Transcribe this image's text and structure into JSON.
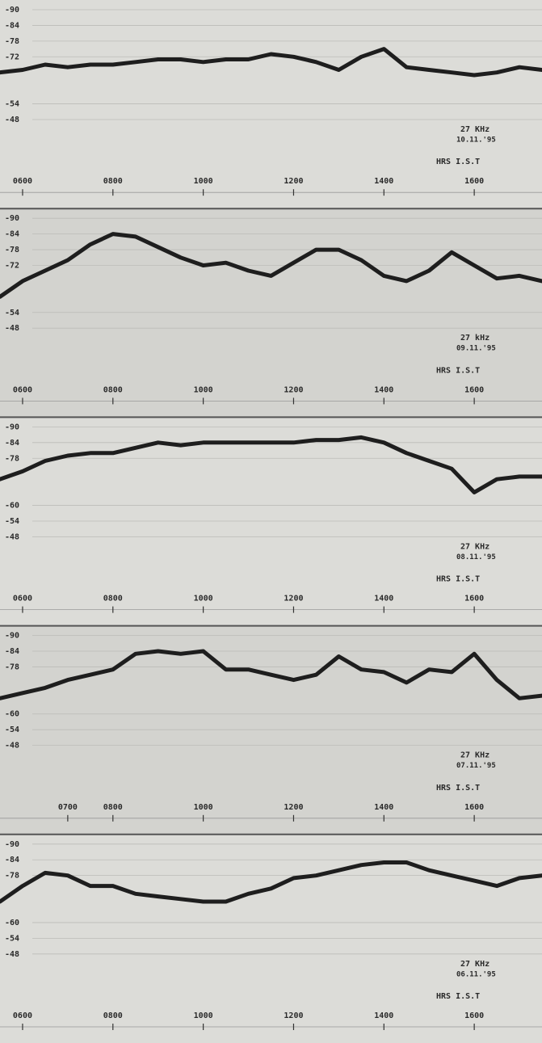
{
  "chart_data": [
    {
      "type": "line",
      "annotation": "27 KHz",
      "date": "10.11.'95",
      "xlabel": "HRS I.S.T",
      "color": "#1e1e1e",
      "grid": true,
      "xlim": [
        5.5,
        17.5
      ],
      "ylim": [
        -48,
        -90
      ],
      "xticks": [
        {
          "value": 6,
          "label": "0600"
        },
        {
          "value": 8,
          "label": "0800"
        },
        {
          "value": 10,
          "label": "1000"
        },
        {
          "value": 12,
          "label": "1200"
        },
        {
          "value": 14,
          "label": "1400"
        },
        {
          "value": 16,
          "label": "1600"
        }
      ],
      "yticks": [
        -90,
        -84,
        -78,
        -72,
        -54,
        -48
      ],
      "x": [
        5.5,
        6,
        6.5,
        7,
        7.5,
        8,
        8.5,
        9,
        9.5,
        10,
        10.5,
        11,
        11.5,
        12,
        12.5,
        13,
        13.5,
        14,
        14.5,
        15,
        15.5,
        16,
        16.5,
        17,
        17.5
      ],
      "values": [
        -66,
        -67,
        -69,
        -68,
        -69,
        -69,
        -70,
        -71,
        -71,
        -70,
        -71,
        -71,
        -73,
        -72,
        -70,
        -67,
        -72,
        -75,
        -68,
        -67,
        -66,
        -65,
        -66,
        -68,
        -67
      ]
    },
    {
      "type": "line",
      "annotation": "27 kHz",
      "date": "09.11.'95",
      "xlabel": "HRS I.S.T",
      "color": "#1e1e1e",
      "grid": true,
      "xlim": [
        5.5,
        17.5
      ],
      "ylim": [
        -48,
        -90
      ],
      "xticks": [
        {
          "value": 6,
          "label": "0600"
        },
        {
          "value": 8,
          "label": "0800"
        },
        {
          "value": 10,
          "label": "1000"
        },
        {
          "value": 12,
          "label": "1200"
        },
        {
          "value": 14,
          "label": "1400"
        },
        {
          "value": 16,
          "label": "1600"
        }
      ],
      "yticks": [
        -90,
        -84,
        -78,
        -72,
        -54,
        -48
      ],
      "x": [
        5.5,
        6,
        6.5,
        7,
        7.5,
        8,
        8.5,
        9,
        9.5,
        10,
        10.5,
        11,
        11.5,
        12,
        12.5,
        13,
        13.5,
        14,
        14.5,
        15,
        15.5,
        16,
        16.5,
        17,
        17.5
      ],
      "values": [
        -60,
        -66,
        -70,
        -74,
        -80,
        -84,
        -83,
        -79,
        -75,
        -72,
        -73,
        -70,
        -68,
        -73,
        -78,
        -78,
        -74,
        -68,
        -66,
        -70,
        -77,
        -72,
        -67,
        -68,
        -66
      ]
    },
    {
      "type": "line",
      "annotation": "27 KHz",
      "date": "08.11.'95",
      "xlabel": "HRS I.S.T",
      "color": "#1e1e1e",
      "grid": true,
      "xlim": [
        5.5,
        17.5
      ],
      "ylim": [
        -48,
        -90
      ],
      "xticks": [
        {
          "value": 6,
          "label": "0600"
        },
        {
          "value": 8,
          "label": "0800"
        },
        {
          "value": 10,
          "label": "1000"
        },
        {
          "value": 12,
          "label": "1200"
        },
        {
          "value": 14,
          "label": "1400"
        },
        {
          "value": 16,
          "label": "1600"
        }
      ],
      "yticks": [
        -90,
        -84,
        -78,
        -60,
        -54,
        -48
      ],
      "x": [
        5.5,
        6,
        6.5,
        7,
        7.5,
        8,
        8.5,
        9,
        9.5,
        10,
        10.5,
        11,
        11.5,
        12,
        12.5,
        13,
        13.5,
        14,
        14.5,
        15,
        15.5,
        16,
        16.5,
        17,
        17.5
      ],
      "values": [
        -70,
        -73,
        -77,
        -79,
        -80,
        -80,
        -82,
        -84,
        -83,
        -84,
        -84,
        -84,
        -84,
        -84,
        -85,
        -85,
        -86,
        -84,
        -80,
        -77,
        -74,
        -65,
        -70,
        -71,
        -71
      ]
    },
    {
      "type": "line",
      "annotation": "27 KHz",
      "date": "07.11.'95",
      "xlabel": "HRS I.S.T",
      "color": "#1e1e1e",
      "grid": true,
      "xlim": [
        5.5,
        17.5
      ],
      "ylim": [
        -48,
        -90
      ],
      "xticks": [
        {
          "value": 7,
          "label": "0700"
        },
        {
          "value": 8,
          "label": "0800"
        },
        {
          "value": 10,
          "label": "1000"
        },
        {
          "value": 12,
          "label": "1200"
        },
        {
          "value": 14,
          "label": "1400"
        },
        {
          "value": 16,
          "label": "1600"
        }
      ],
      "yticks": [
        -90,
        -84,
        -78,
        -60,
        -54,
        -48
      ],
      "x": [
        5.5,
        6,
        6.5,
        7,
        7.5,
        8,
        8.5,
        9,
        9.5,
        10,
        10.5,
        11,
        11.5,
        12,
        12.5,
        13,
        13.5,
        14,
        14.5,
        15,
        15.5,
        16,
        16.5,
        17,
        17.5
      ],
      "values": [
        -66,
        -68,
        -70,
        -73,
        -75,
        -77,
        -83,
        -84,
        -83,
        -84,
        -77,
        -77,
        -75,
        -73,
        -75,
        -82,
        -77,
        -76,
        -72,
        -77,
        -76,
        -83,
        -73,
        -66,
        -67
      ]
    },
    {
      "type": "line",
      "annotation": "27 KHz",
      "date": "06.11.'95",
      "xlabel": "HRS I.S.T",
      "color": "#1e1e1e",
      "grid": true,
      "xlim": [
        5.5,
        17.5
      ],
      "ylim": [
        -48,
        -90
      ],
      "xticks": [
        {
          "value": 6,
          "label": "0600"
        },
        {
          "value": 8,
          "label": "0800"
        },
        {
          "value": 10,
          "label": "1000"
        },
        {
          "value": 12,
          "label": "1200"
        },
        {
          "value": 14,
          "label": "1400"
        },
        {
          "value": 16,
          "label": "1600"
        }
      ],
      "yticks": [
        -90,
        -84,
        -78,
        -60,
        -54,
        -48
      ],
      "x": [
        5.5,
        6,
        6.5,
        7,
        7.5,
        8,
        8.5,
        9,
        9.5,
        10,
        10.5,
        11,
        11.5,
        12,
        12.5,
        13,
        13.5,
        14,
        14.5,
        15,
        15.5,
        16,
        16.5,
        17,
        17.5
      ],
      "values": [
        -68,
        -74,
        -79,
        -78,
        -74,
        -74,
        -71,
        -70,
        -69,
        -68,
        -68,
        -71,
        -73,
        -77,
        -78,
        -80,
        -82,
        -83,
        -83,
        -80,
        -78,
        -76,
        -74,
        -77,
        -78
      ]
    }
  ]
}
